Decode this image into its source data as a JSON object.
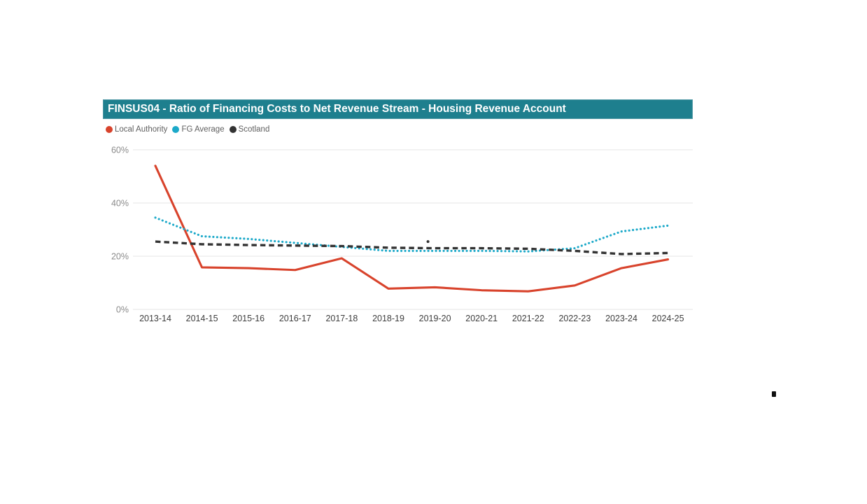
{
  "header": {
    "background_color": "#1e7f8e",
    "text_color": "#ffffff"
  },
  "chart_data": {
    "type": "line",
    "title": "FINSUS04 - Ratio of Financing Costs to Net Revenue Stream - Housing Revenue Account",
    "categories": [
      "2013-14",
      "2014-15",
      "2015-16",
      "2016-17",
      "2017-18",
      "2018-19",
      "2019-20",
      "2020-21",
      "2021-22",
      "2022-23",
      "2023-24",
      "2024-25"
    ],
    "series": [
      {
        "name": "Local Authority",
        "color": "#d8432c",
        "style": "solid",
        "values": [
          54,
          15.8,
          15.5,
          14.8,
          19.2,
          7.8,
          8.3,
          7.2,
          6.8,
          9,
          15.5,
          18.8
        ]
      },
      {
        "name": "FG Average",
        "color": "#1ca9c9",
        "style": "dotted",
        "values": [
          34.5,
          27.5,
          26.5,
          25,
          23.5,
          22,
          22,
          22,
          21.8,
          23,
          29.3,
          31.5
        ]
      },
      {
        "name": "Scotland",
        "color": "#333333",
        "style": "dashed",
        "values": [
          25.5,
          24.5,
          24.2,
          24,
          23.8,
          23.2,
          23,
          23,
          22.8,
          22,
          20.8,
          21.2
        ]
      }
    ],
    "xlabel": "",
    "ylabel": "",
    "ylim": [
      0,
      60
    ],
    "yticks": [
      0,
      20,
      40,
      60
    ],
    "ytick_labels": [
      "0%",
      "20%",
      "40%",
      "60%"
    ],
    "grid": true,
    "legend_position": "top-left",
    "annotations": [
      {
        "type": "dot",
        "category": "2019-20",
        "value": 25.5,
        "color": "#333333"
      }
    ]
  }
}
